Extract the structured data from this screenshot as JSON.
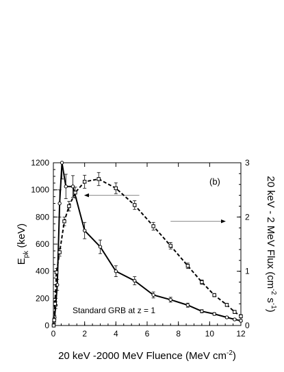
{
  "chart_data": {
    "type": "line",
    "panel_label": "(b)",
    "annotation": "Standard GRB at z = 1",
    "xlabel": {
      "main": "20 keV -2000 MeV Fluence (MeV cm",
      "sup": "-2",
      "close": ")"
    },
    "ylabel_left": {
      "main": "E",
      "sub": "pk",
      "rest": " (keV)"
    },
    "ylabel_right": {
      "main": "20 keV - 2 MeV Flux (cm",
      "sup1": "-2",
      "mid": " s",
      "sup2": "-1",
      "close": ")"
    },
    "xlim": [
      0,
      12
    ],
    "ylim_left": [
      0,
      1200
    ],
    "ylim_right": [
      0,
      3
    ],
    "x_ticks": [
      0,
      2,
      4,
      6,
      8,
      10,
      12
    ],
    "y_left_ticks": [
      0,
      200,
      400,
      600,
      800,
      1000,
      1200
    ],
    "y_right_ticks": [
      0,
      1,
      2,
      3
    ],
    "series": [
      {
        "axis": "left",
        "style": "solid",
        "marker": "circle",
        "x": [
          0.02,
          0.04,
          0.08,
          0.15,
          0.25,
          0.4,
          0.55,
          0.8,
          1.25,
          2.0,
          3.0,
          4.0,
          5.2,
          6.4,
          7.5,
          8.6,
          9.5,
          10.3,
          11.1,
          11.6,
          12.0
        ],
        "y": [
          0,
          20,
          60,
          150,
          300,
          900,
          1200,
          1025,
          1025,
          700,
          580,
          400,
          330,
          225,
          190,
          150,
          105,
          85,
          60,
          45,
          35
        ],
        "err": [
          5,
          8,
          15,
          25,
          40,
          100,
          120,
          90,
          80,
          60,
          50,
          40,
          30,
          22,
          18,
          15,
          12,
          10,
          8,
          8,
          8
        ]
      },
      {
        "axis": "right",
        "style": "dashed",
        "marker": "square",
        "x": [
          0.02,
          0.05,
          0.1,
          0.2,
          0.4,
          0.7,
          1.0,
          1.4,
          2.0,
          2.9,
          4.0,
          5.2,
          6.4,
          7.5,
          8.6,
          9.5,
          10.3,
          11.1,
          11.6,
          12.0
        ],
        "y": [
          0,
          0.1,
          0.4,
          0.98,
          1.35,
          1.92,
          2.2,
          2.45,
          2.65,
          2.7,
          2.53,
          2.22,
          1.83,
          1.47,
          1.1,
          0.8,
          0.56,
          0.38,
          0.25,
          0.17
        ],
        "err": [
          0.01,
          0.02,
          0.05,
          0.07,
          0.07,
          0.08,
          0.09,
          0.1,
          0.12,
          0.12,
          0.1,
          0.08,
          0.07,
          0.06,
          0.05,
          0.04,
          0.03,
          0.03,
          0.03,
          0.03
        ]
      }
    ],
    "arrows": [
      {
        "from": [
          5.5,
          0.8
        ],
        "to": [
          2.0,
          0.8
        ],
        "axis": "left_frac",
        "direction": "left"
      },
      {
        "from": [
          7.5,
          0.64
        ],
        "to": [
          11.0,
          0.64
        ],
        "axis": "left_frac",
        "direction": "right"
      }
    ]
  }
}
